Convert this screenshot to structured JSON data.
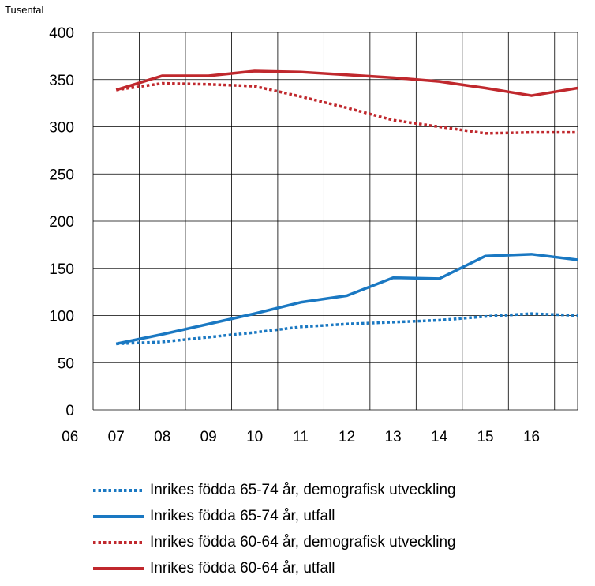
{
  "chart_data": {
    "type": "line",
    "unit_label": "Tusental",
    "x_tick_labels": [
      "06",
      "07",
      "08",
      "09",
      "10",
      "11",
      "12",
      "13",
      "14",
      "15",
      "16"
    ],
    "y_ticks": [
      0,
      50,
      100,
      150,
      200,
      250,
      300,
      350,
      400
    ],
    "ylim": [
      0,
      400
    ],
    "grid": true,
    "legend_position": "bottom",
    "x": [
      6.5,
      7.5,
      8.5,
      9.5,
      10.5,
      11.5,
      12.5,
      13.5,
      14.5,
      15.5,
      16.5
    ],
    "series": [
      {
        "name": "Inrikes födda 65-74 år, demografisk utveckling",
        "color": "#1a78c2",
        "style": "dotted",
        "values": [
          70,
          72,
          77,
          82,
          88,
          91,
          93,
          95,
          99,
          102,
          100
        ]
      },
      {
        "name": "Inrikes födda 65-74 år, utfall",
        "color": "#1a78c2",
        "style": "solid",
        "values": [
          70,
          80,
          91,
          102,
          114,
          121,
          140,
          139,
          163,
          165,
          159
        ]
      },
      {
        "name": "Inrikes födda 60-64 år, demografisk utveckling",
        "color": "#c0282d",
        "style": "dotted",
        "values": [
          339,
          346,
          345,
          343,
          332,
          320,
          307,
          300,
          293,
          294,
          294
        ]
      },
      {
        "name": "Inrikes födda 60-64 år, utfall",
        "color": "#c0282d",
        "style": "solid",
        "values": [
          339,
          354,
          354,
          359,
          358,
          355,
          352,
          348,
          341,
          333,
          341
        ]
      }
    ]
  }
}
